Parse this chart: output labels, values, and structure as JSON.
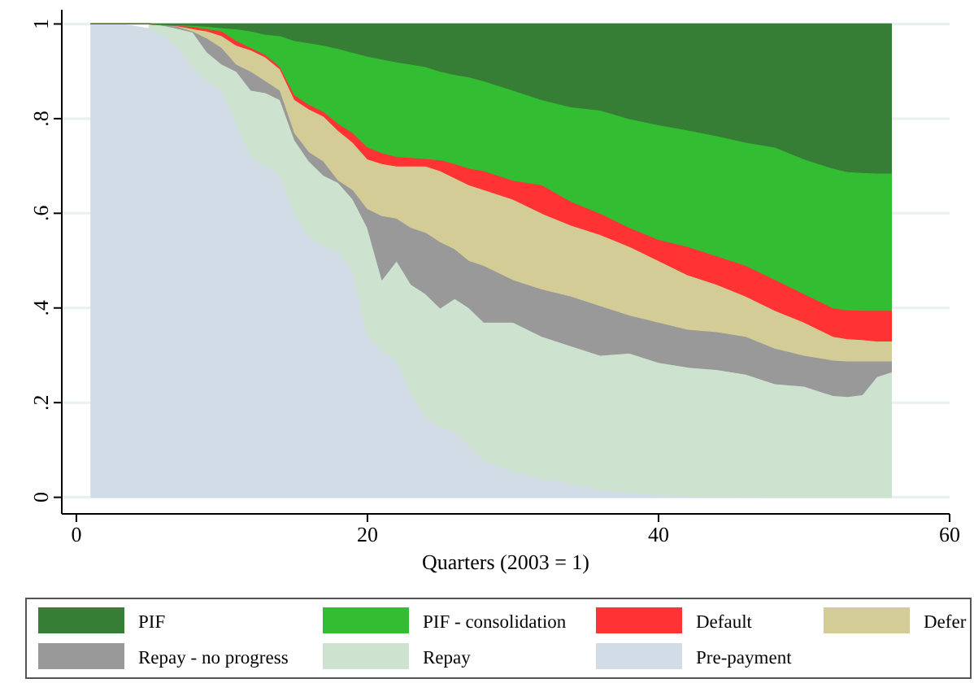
{
  "chart_data": {
    "type": "area",
    "stacked": true,
    "xlabel": "Quarters (2003 = 1)",
    "x": [
      1,
      3,
      5,
      6,
      7,
      8,
      9,
      10,
      11,
      12,
      13,
      14,
      15,
      16,
      17,
      18,
      19,
      20,
      21,
      22,
      23,
      24,
      25,
      26,
      27,
      28,
      30,
      32,
      34,
      36,
      38,
      40,
      42,
      44,
      46,
      48,
      50,
      52,
      53,
      54,
      55,
      56
    ],
    "xlim": [
      -1,
      60
    ],
    "xticks": [
      0,
      20,
      40,
      60
    ],
    "ylim": [
      -0.035,
      1.03
    ],
    "yticks": [
      {
        "value": 0,
        "label": "0"
      },
      {
        "value": 0.2,
        "label": ".2"
      },
      {
        "value": 0.4,
        "label": ".4"
      },
      {
        "value": 0.6,
        "label": ".6"
      },
      {
        "value": 0.8,
        "label": ".8"
      },
      {
        "value": 1,
        "label": "1"
      }
    ],
    "grid": "y",
    "legend": "bottom",
    "series": [
      {
        "name": "Pre-payment",
        "color": "#d1dce6",
        "values": [
          1,
          1,
          0.99,
          0.977,
          0.95,
          0.91,
          0.88,
          0.86,
          0.79,
          0.72,
          0.7,
          0.68,
          0.6,
          0.55,
          0.53,
          0.52,
          0.48,
          0.34,
          0.31,
          0.29,
          0.22,
          0.17,
          0.15,
          0.14,
          0.11,
          0.077,
          0.055,
          0.04,
          0.03,
          0.017,
          0.01,
          0.006,
          0.003,
          0.002,
          0.001,
          0,
          0,
          0,
          0,
          0,
          0,
          0
        ]
      },
      {
        "name": "Repay",
        "color": "#cee3cf",
        "values": [
          null,
          null,
          0.01,
          0.02,
          0.04,
          0.073,
          0.06,
          0.055,
          0.11,
          0.14,
          0.155,
          0.16,
          0.155,
          0.16,
          0.15,
          0.145,
          0.15,
          0.23,
          0.15,
          0.21,
          0.23,
          0.26,
          0.25,
          0.28,
          0.29,
          0.293,
          0.315,
          0.3,
          0.29,
          0.283,
          0.295,
          0.279,
          0.272,
          0.268,
          0.259,
          0.24,
          0.235,
          0.215,
          0.213,
          0.217,
          0.255,
          0.265
        ]
      },
      {
        "name": "Repay - no progress",
        "color": "#999999",
        "values": [
          0,
          0,
          0,
          0.001,
          0.005,
          0.002,
          0.03,
          0.035,
          0.015,
          0.04,
          0.025,
          0.02,
          0.015,
          0.02,
          0.03,
          0.005,
          0.02,
          0.04,
          0.135,
          0.09,
          0.12,
          0.13,
          0.14,
          0.105,
          0.1,
          0.12,
          0.09,
          0.1,
          0.105,
          0.105,
          0.08,
          0.085,
          0.08,
          0.08,
          0.08,
          0.075,
          0.065,
          0.075,
          0.075,
          0.071,
          0.033,
          0.023
        ]
      },
      {
        "name": "Defer",
        "color": "#d4cc97",
        "values": [
          0,
          0,
          0,
          0,
          0.001,
          0.005,
          0.015,
          0.025,
          0.04,
          0.045,
          0.05,
          0.045,
          0.07,
          0.09,
          0.095,
          0.105,
          0.1,
          0.105,
          0.11,
          0.11,
          0.13,
          0.14,
          0.15,
          0.15,
          0.16,
          0.16,
          0.17,
          0.16,
          0.15,
          0.15,
          0.145,
          0.13,
          0.115,
          0.1,
          0.085,
          0.08,
          0.07,
          0.05,
          0.047,
          0.045,
          0.042,
          0.042
        ]
      },
      {
        "name": "Default",
        "color": "#ff3333",
        "values": [
          0,
          0,
          0,
          0,
          0.001,
          0.005,
          0.005,
          0.01,
          0.01,
          0.005,
          0.005,
          0.005,
          0.01,
          0.01,
          0.01,
          0.015,
          0.02,
          0.025,
          0.023,
          0.02,
          0.018,
          0.016,
          0.023,
          0.03,
          0.035,
          0.04,
          0.04,
          0.06,
          0.05,
          0.045,
          0.04,
          0.045,
          0.06,
          0.06,
          0.065,
          0.065,
          0.06,
          0.06,
          0.061,
          0.062,
          0.065,
          0.065
        ]
      },
      {
        "name": "PIF - consolidation",
        "color": "#33bd33",
        "values": [
          0,
          0,
          0,
          0.001,
          0.001,
          0.002,
          0.005,
          0.007,
          0.025,
          0.035,
          0.043,
          0.065,
          0.115,
          0.13,
          0.14,
          0.158,
          0.17,
          0.192,
          0.198,
          0.2,
          0.197,
          0.194,
          0.187,
          0.188,
          0.193,
          0.19,
          0.19,
          0.18,
          0.2,
          0.218,
          0.23,
          0.242,
          0.246,
          0.254,
          0.26,
          0.28,
          0.285,
          0.295,
          0.292,
          0.291,
          0.29,
          0.29
        ]
      },
      {
        "name": "PIF",
        "color": "#367e35",
        "values": [
          0,
          0,
          0,
          0.001,
          0.002,
          0.003,
          0.005,
          0.008,
          0.01,
          0.015,
          0.022,
          0.025,
          0.035,
          0.04,
          0.045,
          0.052,
          0.06,
          0.068,
          0.074,
          0.08,
          0.085,
          0.09,
          0.1,
          0.107,
          0.112,
          0.12,
          0.14,
          0.16,
          0.175,
          0.182,
          0.2,
          0.213,
          0.224,
          0.236,
          0.25,
          0.26,
          0.285,
          0.305,
          0.312,
          0.314,
          0.315,
          0.315
        ]
      }
    ]
  }
}
